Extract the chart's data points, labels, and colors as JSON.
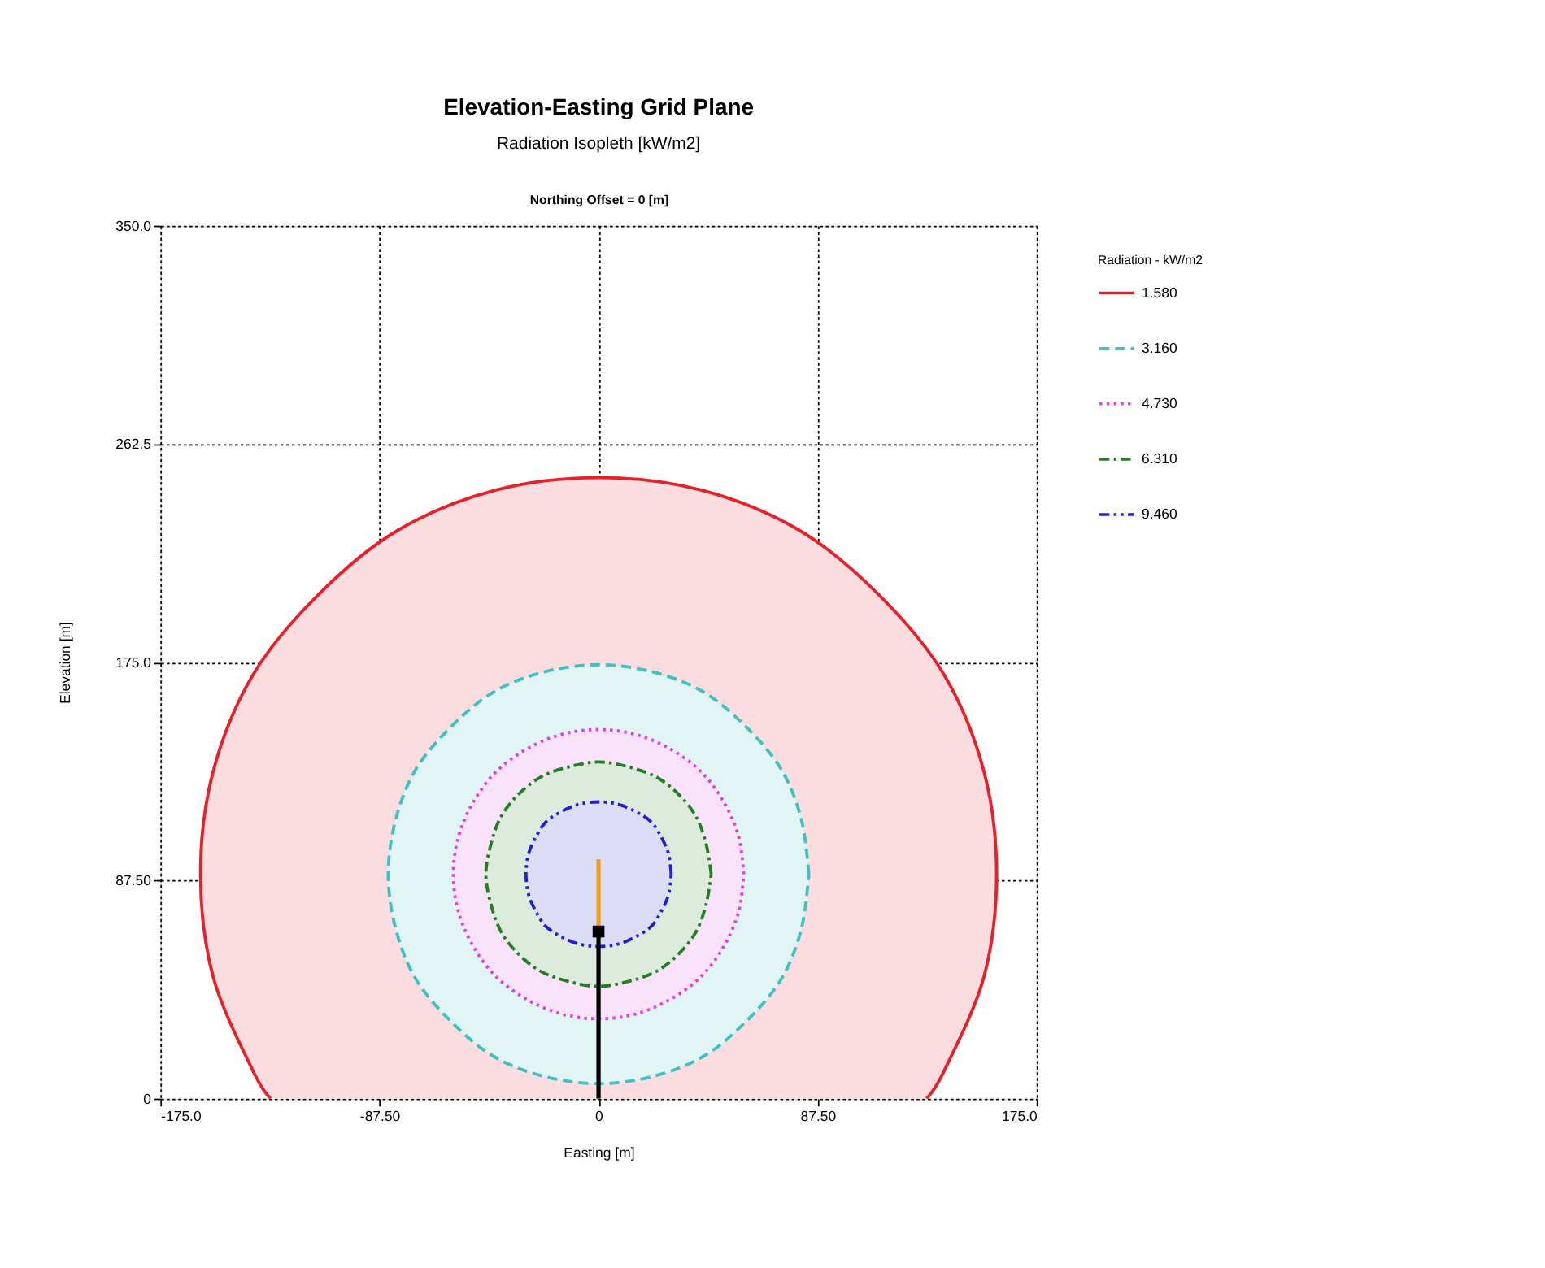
{
  "chart_data": {
    "type": "line",
    "title": "Elevation-Easting Grid Plane",
    "subtitle": "Radiation Isopleth [kW/m2]",
    "annotations": [
      "Northing Offset = 0 [m]"
    ],
    "xlabel": "Easting [m]",
    "ylabel": "Elevation [m]",
    "legend_title": "Radiation - kW/m2",
    "legend": "top right",
    "grid": true,
    "xlim": [
      -175,
      175
    ],
    "ylim": [
      0,
      350
    ],
    "xticks": [
      {
        "value": -175,
        "label": "-175.0"
      },
      {
        "value": -87.5,
        "label": "-87.50"
      },
      0,
      {
        "value": 87.5,
        "label": "87.50"
      },
      {
        "value": 175,
        "label": "175.0"
      }
    ],
    "yticks": [
      0,
      {
        "value": 87.5,
        "label": "87.50"
      },
      {
        "value": 175,
        "label": "175.0"
      },
      {
        "value": 262.5,
        "label": "262.5"
      },
      {
        "value": 350,
        "label": "350.0"
      }
    ],
    "series": [
      {
        "name": "1.580",
        "type": "area",
        "color": "#e8202a",
        "line_style": "solid",
        "x": [
          131,
          138,
          154,
          159,
          154,
          138,
          112,
          80,
          41,
          0,
          -41,
          -80,
          -112,
          -138,
          -154,
          -159,
          -154,
          -138,
          -131
        ],
        "values": [
          0,
          11,
          49,
          90,
          131,
          170,
          202,
          228,
          244,
          249,
          244,
          228,
          202,
          170,
          131,
          90,
          49,
          11,
          0
        ]
      },
      {
        "name": "3.160",
        "type": "area",
        "color": "#40c0c0",
        "line_style": "dashed",
        "x": [
          84,
          81,
          73,
          59,
          42,
          22,
          0,
          -22,
          -42,
          -59,
          -73,
          -81,
          -84,
          -81,
          -73,
          -59,
          -42,
          -22,
          0,
          22,
          42,
          59,
          73,
          81,
          84
        ],
        "values": [
          90,
          112,
          132,
          149,
          163,
          171,
          174,
          171,
          163,
          149,
          132,
          112,
          90,
          68,
          48,
          31,
          17,
          9,
          6,
          9,
          17,
          31,
          48,
          68,
          90
        ]
      },
      {
        "name": "4.730",
        "type": "area",
        "color": "#e040e0",
        "line_style": "dotted",
        "x": [
          58,
          56,
          50,
          41,
          29,
          15,
          0,
          -15,
          -29,
          -41,
          -50,
          -56,
          -58,
          -56,
          -50,
          -41,
          -29,
          -15,
          0,
          15,
          29,
          41,
          50,
          56,
          58
        ],
        "values": [
          90,
          105,
          119,
          131,
          140,
          146,
          148,
          146,
          140,
          131,
          119,
          105,
          90,
          75,
          61,
          49,
          40,
          34,
          32,
          34,
          40,
          49,
          61,
          75,
          90
        ]
      },
      {
        "name": "6.310",
        "type": "area",
        "color": "#208020",
        "line_style": "dashdot",
        "x": [
          45,
          43,
          39,
          32,
          23,
          12,
          0,
          -12,
          -23,
          -32,
          -39,
          -43,
          -45,
          -43,
          -39,
          -32,
          -23,
          -12,
          0,
          12,
          23,
          32,
          39,
          43,
          45
        ],
        "values": [
          90,
          102,
          113,
          122,
          129,
          133,
          135,
          133,
          129,
          122,
          113,
          102,
          90,
          78,
          67,
          58,
          51,
          47,
          45,
          47,
          51,
          58,
          67,
          78,
          90
        ]
      },
      {
        "name": "9.460",
        "type": "area",
        "color": "#2020d0",
        "line_style": "dashdotdot",
        "x": [
          29,
          28,
          25,
          21,
          15,
          8,
          0,
          -8,
          -15,
          -21,
          -25,
          -28,
          -29,
          -28,
          -25,
          -21,
          -15,
          -8,
          0,
          8,
          15,
          21,
          25,
          28,
          29
        ],
        "values": [
          90,
          98,
          105,
          111,
          115,
          118,
          119,
          118,
          115,
          111,
          105,
          98,
          90,
          82,
          75,
          69,
          65,
          62,
          61,
          62,
          65,
          69,
          75,
          82,
          90
        ]
      },
      {
        "color": "#000000",
        "line_style": "solid",
        "x": [
          0,
          0
        ],
        "values": [
          0,
          67
        ]
      },
      {
        "color": "#f0a020",
        "line_style": "solid",
        "x": [
          0,
          0
        ],
        "values": [
          67,
          96
        ]
      },
      {
        "type": "scatter",
        "color": "#000000",
        "marker": "square",
        "x": [
          0
        ],
        "values": [
          67
        ]
      }
    ]
  }
}
